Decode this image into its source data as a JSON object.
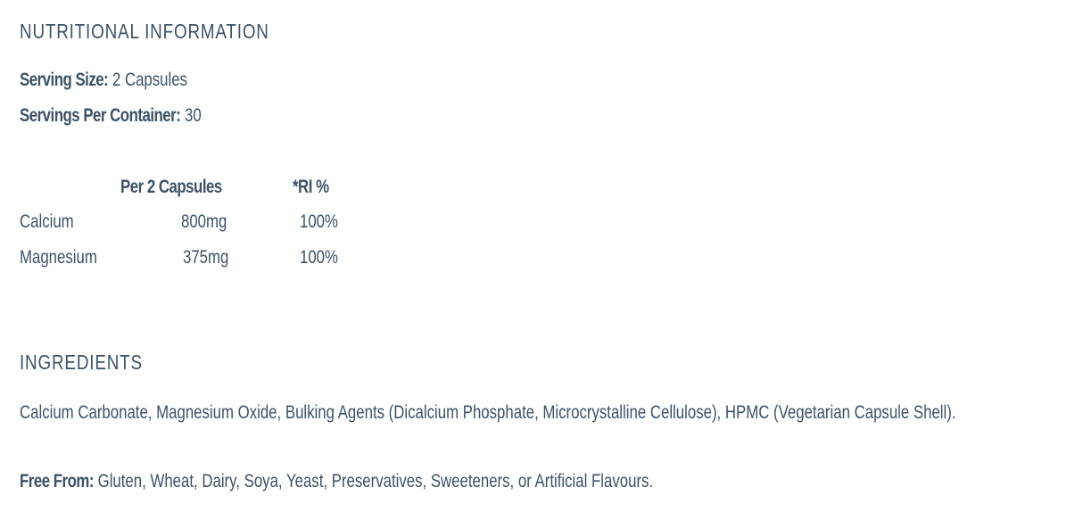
{
  "nutrition": {
    "title": "NUTRITIONAL INFORMATION",
    "serving_size_label": "Serving Size:",
    "serving_size_value": "2 Capsules",
    "servings_per_container_label": "Servings Per Container:",
    "servings_per_container_value": "30",
    "table": {
      "headers": [
        "Per 2 Capsules",
        "*RI %"
      ],
      "rows": [
        {
          "name": "Calcium",
          "amount": "800mg",
          "ri": "100%"
        },
        {
          "name": "Magnesium",
          "amount": "375mg",
          "ri": "100%"
        }
      ]
    }
  },
  "ingredients": {
    "title": "INGREDIENTS",
    "text": "Calcium Carbonate, Magnesium Oxide, Bulking Agents (Dicalcium Phosphate, Microcrystalline Cellulose), HPMC (Vegetarian Capsule Shell).",
    "free_from_label": "Free From:",
    "free_from_value": "Gluten, Wheat, Dairy, Soya, Yeast, Preservatives, Sweeteners, or Artificial Flavours."
  }
}
